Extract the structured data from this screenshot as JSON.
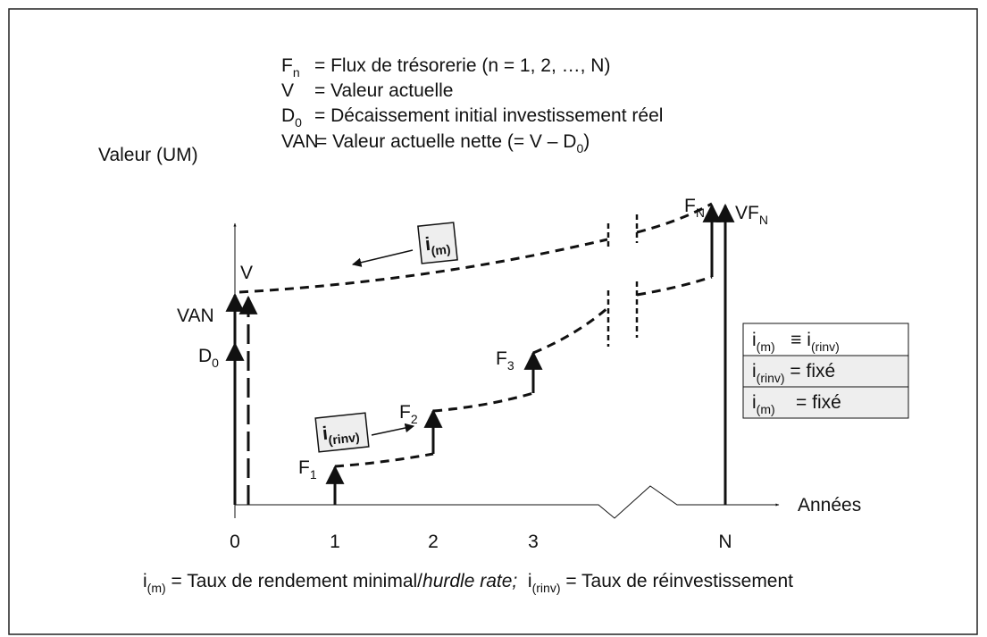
{
  "legend": [
    {
      "term": [
        {
          "t": "F"
        },
        {
          "sub": "n"
        }
      ],
      "definition": [
        {
          "t": "= Flux de trésorerie (n = 1, 2, …, N)"
        }
      ]
    },
    {
      "term": [
        {
          "t": "V"
        }
      ],
      "definition": [
        {
          "t": "= Valeur actuelle"
        }
      ]
    },
    {
      "term": [
        {
          "t": "D"
        },
        {
          "sub": "0"
        }
      ],
      "definition": [
        {
          "t": "= Décaissement initial investissement réel"
        }
      ]
    },
    {
      "term": [
        {
          "t": "VAN"
        }
      ],
      "definition": [
        {
          "t": "= Valeur actuelle nette (= V – D"
        },
        {
          "sub": "0"
        },
        {
          "t": ")"
        }
      ]
    }
  ],
  "y_axis_label": "Valeur (UM)",
  "x_axis_label": "Années",
  "x_ticks": [
    "0",
    "1",
    "2",
    "3",
    "N"
  ],
  "labels": {
    "V": [
      {
        "t": "V"
      }
    ],
    "VAN": [
      {
        "t": "VAN"
      }
    ],
    "D0": [
      {
        "t": "D"
      },
      {
        "sub": "0"
      }
    ],
    "F1": [
      {
        "t": "F"
      },
      {
        "sub": "1"
      }
    ],
    "F2": [
      {
        "t": "F"
      },
      {
        "sub": "2"
      }
    ],
    "F3": [
      {
        "t": "F"
      },
      {
        "sub": "3"
      }
    ],
    "FN": [
      {
        "t": "F"
      },
      {
        "sub": "N"
      }
    ],
    "VFN": [
      {
        "t": "VF"
      },
      {
        "sub": "N"
      }
    ]
  },
  "rate_boxes": {
    "discount": [
      {
        "t": "i"
      },
      {
        "sub": "(m)"
      }
    ],
    "reinvestment": [
      {
        "t": "i"
      },
      {
        "sub": "(rinv)"
      }
    ]
  },
  "conditions": [
    [
      {
        "t": "i"
      },
      {
        "sub": "(m)"
      },
      {
        "t": "   ≡ i"
      },
      {
        "sub": "(rinv)"
      }
    ],
    [
      {
        "t": "i"
      },
      {
        "sub": "(rinv)"
      },
      {
        "t": " = fixé"
      }
    ],
    [
      {
        "t": "i"
      },
      {
        "sub": "(m)"
      },
      {
        "t": "    = fixé"
      }
    ]
  ],
  "footnote": [
    {
      "t": "i"
    },
    {
      "sub": "(m)"
    },
    {
      "t": " = Taux de rendement minimal/"
    },
    {
      "it": "hurdle rate;"
    },
    {
      "t": "  i"
    },
    {
      "sub": "(rinv)"
    },
    {
      "t": " = Taux de réinvestissement"
    }
  ]
}
